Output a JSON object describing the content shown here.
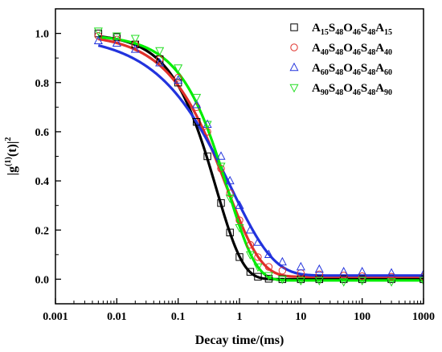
{
  "chart_data": {
    "type": "scatter",
    "xlabel": "Decay time/(ms)",
    "ylabel_parts": [
      "|g",
      "(1)",
      "(t)|",
      "2"
    ],
    "xscale": "log",
    "xlim": [
      0.001,
      1000
    ],
    "ylim": [
      -0.1,
      1.1
    ],
    "x_ticks": [
      0.001,
      0.01,
      0.1,
      1,
      10,
      100,
      1000
    ],
    "x_tick_labels": [
      "0.001",
      "0.01",
      "0.1",
      "1",
      "10",
      "100",
      "1000"
    ],
    "y_ticks": [
      0.0,
      0.2,
      0.4,
      0.6,
      0.8,
      1.0
    ],
    "y_tick_labels": [
      "0.0",
      "0.2",
      "0.4",
      "0.6",
      "0.8",
      "1.0"
    ],
    "legend_position": "top-right",
    "grid": false,
    "series": [
      {
        "name": "A15S48O46S48A15",
        "label_parts": [
          [
            "A",
            ""
          ],
          [
            "15",
            "sub"
          ],
          [
            "S",
            ""
          ],
          [
            "48",
            "sub"
          ],
          [
            "O",
            ""
          ],
          [
            "46",
            "sub"
          ],
          [
            "S",
            ""
          ],
          [
            "48",
            "sub"
          ],
          [
            "A",
            ""
          ],
          [
            "15",
            "sub"
          ]
        ],
        "marker": "square",
        "color": "#000000",
        "fit_color": "#000000",
        "fit": {
          "tau": 0.42,
          "beta": 1.0,
          "amp": 1.0,
          "base": 0.0
        },
        "x": [
          0.005,
          0.01,
          0.02,
          0.05,
          0.1,
          0.2,
          0.3,
          0.5,
          0.7,
          1,
          1.5,
          2,
          3,
          5,
          10,
          20,
          50,
          100,
          300,
          1000
        ],
        "y": [
          1.0,
          0.985,
          0.955,
          0.895,
          0.8,
          0.64,
          0.5,
          0.31,
          0.19,
          0.09,
          0.03,
          0.01,
          0.002,
          0.0,
          0.0,
          0.0,
          0.0,
          0.0,
          0.0,
          0.0
        ]
      },
      {
        "name": "A40S48O46S48A40",
        "label_parts": [
          [
            "A",
            ""
          ],
          [
            "40",
            "sub"
          ],
          [
            "S",
            ""
          ],
          [
            "48",
            "sub"
          ],
          [
            "O",
            ""
          ],
          [
            "46",
            "sub"
          ],
          [
            "S",
            ""
          ],
          [
            "48",
            "sub"
          ],
          [
            "A",
            ""
          ],
          [
            "40",
            "sub"
          ]
        ],
        "marker": "circle",
        "color": "#e0302a",
        "fit_color": "#e0302a",
        "fit": {
          "tau": 0.62,
          "beta": 0.78,
          "amp": 0.99,
          "base": 0.01
        },
        "x": [
          0.005,
          0.01,
          0.02,
          0.05,
          0.1,
          0.2,
          0.3,
          0.5,
          0.7,
          1,
          1.5,
          2,
          3,
          5,
          10,
          20,
          50,
          100,
          300,
          1000
        ],
        "y": [
          0.99,
          0.975,
          0.955,
          0.895,
          0.82,
          0.7,
          0.6,
          0.45,
          0.35,
          0.24,
          0.14,
          0.09,
          0.05,
          0.035,
          0.025,
          0.02,
          0.015,
          0.012,
          0.01,
          0.01
        ]
      },
      {
        "name": "A60S48O46S48A60",
        "label_parts": [
          [
            "A",
            ""
          ],
          [
            "60",
            "sub"
          ],
          [
            "S",
            ""
          ],
          [
            "48",
            "sub"
          ],
          [
            "O",
            ""
          ],
          [
            "46",
            "sub"
          ],
          [
            "S",
            ""
          ],
          [
            "48",
            "sub"
          ],
          [
            "A",
            ""
          ],
          [
            "60",
            "sub"
          ]
        ],
        "marker": "triangle-up",
        "color": "#2233dd",
        "fit_color": "#2233dd",
        "fit": {
          "tau": 0.72,
          "beta": 0.62,
          "amp": 0.98,
          "base": 0.015
        },
        "x": [
          0.005,
          0.01,
          0.02,
          0.05,
          0.1,
          0.2,
          0.3,
          0.5,
          0.7,
          1,
          1.5,
          2,
          3,
          5,
          10,
          20,
          50,
          100,
          300,
          1000
        ],
        "y": [
          0.97,
          0.96,
          0.935,
          0.88,
          0.81,
          0.71,
          0.63,
          0.5,
          0.4,
          0.3,
          0.2,
          0.15,
          0.1,
          0.07,
          0.05,
          0.04,
          0.03,
          0.03,
          0.025,
          0.02
        ]
      },
      {
        "name": "A90S48O46S48A90",
        "label_parts": [
          [
            "A",
            ""
          ],
          [
            "90",
            "sub"
          ],
          [
            "S",
            ""
          ],
          [
            "48",
            "sub"
          ],
          [
            "O",
            ""
          ],
          [
            "46",
            "sub"
          ],
          [
            "S",
            ""
          ],
          [
            "48",
            "sub"
          ],
          [
            "A",
            ""
          ],
          [
            "90",
            "sub"
          ]
        ],
        "marker": "triangle-down",
        "color": "#22dd22",
        "fit_color": "#00ee00",
        "fit": {
          "tau": 0.65,
          "beta": 0.95,
          "amp": 1.0,
          "base": -0.005
        },
        "x": [
          0.005,
          0.01,
          0.02,
          0.05,
          0.1,
          0.2,
          0.3,
          0.5,
          0.7,
          1,
          1.5,
          2,
          3,
          5,
          10,
          20,
          50,
          100,
          300,
          1000
        ],
        "y": [
          1.01,
          0.99,
          0.98,
          0.93,
          0.86,
          0.74,
          0.63,
          0.46,
          0.33,
          0.21,
          0.1,
          0.05,
          0.015,
          0.0,
          -0.005,
          -0.005,
          -0.01,
          -0.005,
          -0.01,
          -0.005
        ]
      }
    ]
  }
}
